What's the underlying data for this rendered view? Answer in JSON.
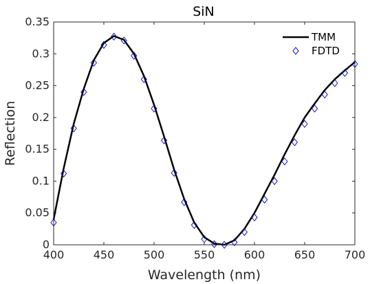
{
  "chart_data": {
    "type": "line",
    "title": "SiN",
    "xlabel": "Wavelength (nm)",
    "ylabel": "Reflection",
    "xlim": [
      400,
      700
    ],
    "ylim": [
      0,
      0.35
    ],
    "xticks": [
      400,
      450,
      500,
      550,
      600,
      650,
      700
    ],
    "yticks": [
      0,
      0.05,
      0.1,
      0.15,
      0.2,
      0.25,
      0.3,
      0.35
    ],
    "xtick_labels": [
      "400",
      "450",
      "500",
      "550",
      "600",
      "650",
      "700"
    ],
    "ytick_labels": [
      "0",
      "0.05",
      "0.1",
      "0.15",
      "0.2",
      "0.25",
      "0.3",
      "0.35"
    ],
    "grid": false,
    "legend_position": "top-right",
    "series": [
      {
        "name": "TMM",
        "style": "line",
        "color": "#000000",
        "x": [
          400,
          410,
          420,
          430,
          440,
          450,
          460,
          470,
          480,
          490,
          500,
          510,
          520,
          530,
          540,
          550,
          560,
          570,
          580,
          590,
          600,
          610,
          620,
          630,
          640,
          650,
          660,
          670,
          680,
          690,
          700
        ],
        "y": [
          0.04,
          0.12,
          0.19,
          0.245,
          0.29,
          0.317,
          0.328,
          0.322,
          0.3,
          0.265,
          0.22,
          0.17,
          0.118,
          0.072,
          0.035,
          0.012,
          0.002,
          0.0,
          0.007,
          0.025,
          0.05,
          0.08,
          0.11,
          0.142,
          0.172,
          0.2,
          0.222,
          0.243,
          0.26,
          0.274,
          0.287
        ]
      },
      {
        "name": "FDTD",
        "style": "markers",
        "marker": "diamond",
        "color": "#0000b0",
        "x": [
          400,
          410,
          420,
          430,
          440,
          450,
          460,
          470,
          480,
          490,
          500,
          510,
          520,
          530,
          540,
          550,
          560,
          570,
          580,
          590,
          600,
          610,
          620,
          630,
          640,
          650,
          660,
          670,
          680,
          690,
          700
        ],
        "y": [
          0.035,
          0.112,
          0.183,
          0.24,
          0.286,
          0.314,
          0.327,
          0.321,
          0.297,
          0.26,
          0.214,
          0.164,
          0.113,
          0.067,
          0.031,
          0.009,
          0.001,
          0.0,
          0.004,
          0.02,
          0.043,
          0.071,
          0.1,
          0.131,
          0.161,
          0.19,
          0.214,
          0.236,
          0.254,
          0.27,
          0.284
        ]
      }
    ]
  }
}
